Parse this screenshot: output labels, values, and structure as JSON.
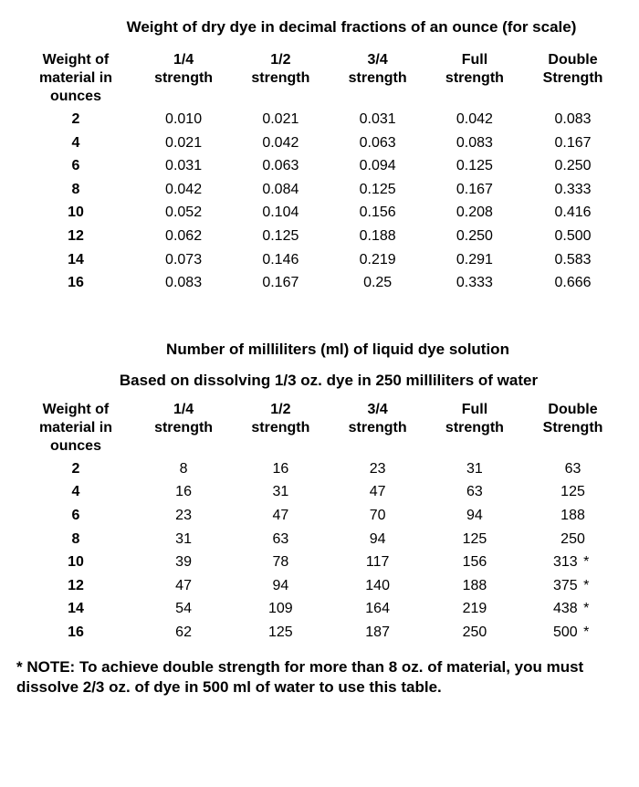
{
  "table1": {
    "title": "Weight of dry dye in decimal fractions of an ounce (for scale)",
    "headers": {
      "c0a": "Weight of",
      "c0b": "material in",
      "c0c": "ounces",
      "c1a": "1/4",
      "c1b": "strength",
      "c2a": "1/2",
      "c2b": "strength",
      "c3a": "3/4",
      "c3b": "strength",
      "c4a": "Full",
      "c4b": "strength",
      "c5a": "Double",
      "c5b": "Strength"
    },
    "rows": [
      {
        "w": "2",
        "v1": "0.010",
        "v2": "0.021",
        "v3": "0.031",
        "v4": "0.042",
        "v5": "0.083"
      },
      {
        "w": "4",
        "v1": "0.021",
        "v2": "0.042",
        "v3": "0.063",
        "v4": "0.083",
        "v5": "0.167"
      },
      {
        "w": "6",
        "v1": "0.031",
        "v2": "0.063",
        "v3": "0.094",
        "v4": "0.125",
        "v5": "0.250"
      },
      {
        "w": "8",
        "v1": "0.042",
        "v2": "0.084",
        "v3": "0.125",
        "v4": "0.167",
        "v5": "0.333"
      },
      {
        "w": "10",
        "v1": "0.052",
        "v2": "0.104",
        "v3": "0.156",
        "v4": "0.208",
        "v5": "0.416"
      },
      {
        "w": "12",
        "v1": "0.062",
        "v2": "0.125",
        "v3": "0.188",
        "v4": "0.250",
        "v5": "0.500"
      },
      {
        "w": "14",
        "v1": "0.073",
        "v2": "0.146",
        "v3": "0.219",
        "v4": "0.291",
        "v5": "0.583"
      },
      {
        "w": "16",
        "v1": "0.083",
        "v2": "0.167",
        "v3": "0.25",
        "v4": "0.333",
        "v5": "0.666"
      }
    ]
  },
  "table2": {
    "title": "Number of milliliters (ml) of liquid dye solution",
    "subtitle": "Based on dissolving 1/3 oz. dye in 250 milliliters of water",
    "headers": {
      "c0a": "Weight of",
      "c0b": "material in",
      "c0c": "ounces",
      "c1a": "1/4",
      "c1b": "strength",
      "c2a": "1/2",
      "c2b": "strength",
      "c3a": "3/4",
      "c3b": "strength",
      "c4a": "Full",
      "c4b": "strength",
      "c5a": "Double",
      "c5b": "Strength"
    },
    "rows": [
      {
        "w": "2",
        "v1": "8",
        "v2": "16",
        "v3": "23",
        "v4": "31",
        "v5": "63",
        "star": false
      },
      {
        "w": "4",
        "v1": "16",
        "v2": "31",
        "v3": "47",
        "v4": "63",
        "v5": "125",
        "star": false
      },
      {
        "w": "6",
        "v1": "23",
        "v2": "47",
        "v3": "70",
        "v4": "94",
        "v5": "188",
        "star": false
      },
      {
        "w": "8",
        "v1": "31",
        "v2": "63",
        "v3": "94",
        "v4": "125",
        "v5": "250",
        "star": false
      },
      {
        "w": "10",
        "v1": "39",
        "v2": "78",
        "v3": "117",
        "v4": "156",
        "v5": "313",
        "star": true
      },
      {
        "w": "12",
        "v1": "47",
        "v2": "94",
        "v3": "140",
        "v4": "188",
        "v5": "375",
        "star": true
      },
      {
        "w": "14",
        "v1": "54",
        "v2": "109",
        "v3": "164",
        "v4": "219",
        "v5": "438",
        "star": true
      },
      {
        "w": "16",
        "v1": "62",
        "v2": "125",
        "v3": "187",
        "v4": "250",
        "v5": "500",
        "star": true
      }
    ]
  },
  "note": "* NOTE: To achieve double strength for more than 8 oz. of material, you must dissolve 2/3 oz. of dye in 500 ml of water to use this table."
}
